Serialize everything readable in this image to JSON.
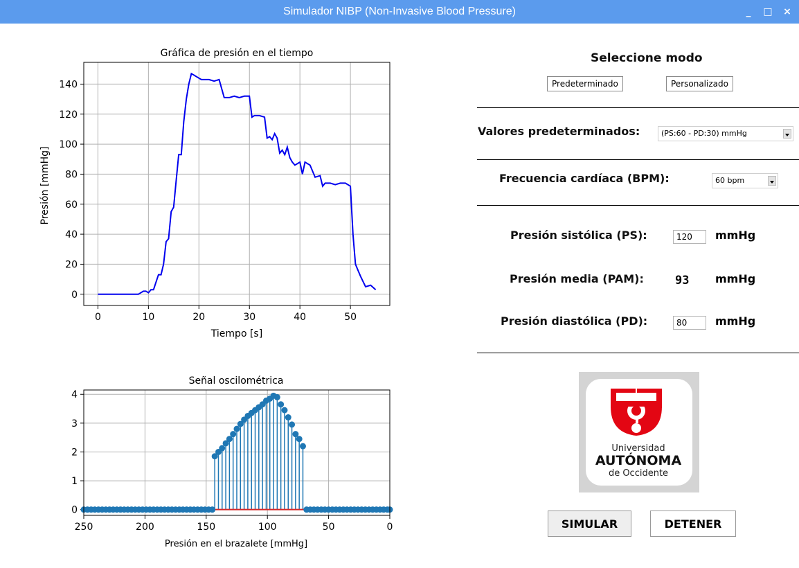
{
  "window": {
    "title": "Simulador NIBP (Non-Invasive Blood Pressure)",
    "controls": [
      "_",
      "□",
      "×"
    ]
  },
  "chart_data": [
    {
      "type": "line",
      "title": "Gráfica de presión en el tiempo",
      "xlabel": "Tiempo [s]",
      "ylabel": "Presión [mmHg]",
      "xlim": [
        -2.8,
        57.8
      ],
      "ylim": [
        -7.5,
        154.5
      ],
      "xticks": [
        0,
        10,
        20,
        30,
        40,
        50
      ],
      "yticks": [
        0,
        20,
        40,
        60,
        80,
        100,
        120,
        140
      ],
      "grid": true,
      "series": [
        {
          "color": "#0000ee",
          "x": [
            0,
            8,
            9,
            9.5,
            10,
            10.5,
            11,
            11.5,
            12,
            12.5,
            13,
            13.5,
            14,
            14.5,
            15,
            15.5,
            16,
            16.5,
            17,
            17.5,
            18,
            18.5,
            19,
            20,
            20.5,
            21,
            22,
            23,
            24,
            25,
            25.5,
            26,
            27,
            28,
            29,
            30,
            30.5,
            31,
            32,
            33,
            33.5,
            34,
            34.5,
            35,
            35.5,
            36,
            36.5,
            37,
            37.5,
            38,
            38.5,
            39,
            40,
            40.5,
            41,
            42,
            43,
            44,
            44.5,
            45,
            46,
            47,
            48,
            49,
            50,
            50.5,
            51,
            51.5,
            52,
            53,
            54,
            55
          ],
          "y": [
            0,
            0,
            2,
            2,
            1,
            3,
            3,
            8,
            13,
            13,
            20,
            35,
            37,
            55,
            58,
            76,
            93,
            93,
            115,
            130,
            140,
            147,
            146,
            144,
            143,
            143,
            143,
            142,
            143,
            131,
            131,
            131,
            132,
            131,
            132,
            132,
            118,
            119,
            119,
            118,
            104,
            105,
            103,
            107,
            104,
            94,
            96,
            93,
            98,
            91,
            88,
            86,
            88,
            80,
            88,
            86,
            78,
            79,
            72,
            74,
            74,
            73,
            74,
            74,
            72,
            40,
            20,
            16,
            12,
            5,
            6,
            3
          ]
        }
      ]
    },
    {
      "type": "stem",
      "title": "Señal oscilométrica",
      "xlabel": "Presión en el brazalete [mmHg]",
      "ylabel": "",
      "xlim": [
        250,
        0
      ],
      "ylim": [
        -0.2,
        4.15
      ],
      "xticks": [
        250,
        200,
        150,
        100,
        50,
        0
      ],
      "yticks": [
        0,
        1,
        2,
        3,
        4
      ],
      "grid": true,
      "baseline_color": "#d62728",
      "marker_color": "#1f77b4",
      "x": [
        250,
        247,
        244,
        241,
        238,
        235,
        232,
        229,
        226,
        223,
        220,
        217,
        214,
        211,
        208,
        205,
        202,
        199,
        196,
        193,
        190,
        187,
        184,
        181,
        178,
        175,
        172,
        169,
        166,
        163,
        160,
        157,
        154,
        151,
        148,
        145,
        143,
        140,
        137,
        134,
        131,
        128,
        125,
        122,
        119,
        116,
        113,
        110,
        107,
        104,
        101,
        98,
        95,
        92,
        89,
        86,
        83,
        80,
        77,
        74,
        71,
        68,
        65,
        62,
        59,
        56,
        53,
        50,
        47,
        44,
        41,
        38,
        35,
        32,
        29,
        26,
        23,
        20,
        17,
        14,
        11,
        8,
        5,
        2,
        0
      ],
      "y": [
        0,
        0,
        0,
        0,
        0,
        0,
        0,
        0,
        0,
        0,
        0,
        0,
        0,
        0,
        0,
        0,
        0,
        0,
        0,
        0,
        0,
        0,
        0,
        0,
        0,
        0,
        0,
        0,
        0,
        0,
        0,
        0,
        0,
        0,
        0,
        0,
        1.85,
        2.0,
        2.13,
        2.3,
        2.45,
        2.62,
        2.8,
        2.97,
        3.12,
        3.25,
        3.35,
        3.45,
        3.55,
        3.65,
        3.78,
        3.85,
        3.95,
        3.9,
        3.65,
        3.45,
        3.2,
        2.95,
        2.62,
        2.45,
        2.2,
        0,
        0,
        0,
        0,
        0,
        0,
        0,
        0,
        0,
        0,
        0,
        0,
        0,
        0,
        0,
        0,
        0,
        0,
        0,
        0,
        0,
        0,
        0,
        0
      ]
    }
  ],
  "panel": {
    "mode_title": "Seleccione modo",
    "btn_pre": "Predeterminado",
    "btn_pers": "Personalizado",
    "preset_label": "Valores predeterminados:",
    "preset_value": "(PS:60 - PD:30) mmHg",
    "fc_label": "Frecuencia cardíaca (BPM):",
    "fc_value": "60 bpm",
    "ps_label": "Presión sistólica (PS):",
    "ps_value": "120",
    "pam_label": "Presión media (PAM):",
    "pam_value": "93",
    "pd_label": "Presión diastólica (PD):",
    "pd_value": "80",
    "unit": "mmHg",
    "btn_sim": "SIMULAR",
    "btn_det": "DETENER"
  },
  "logo": {
    "line1": "Universidad",
    "line2": "AUTÓNOMA",
    "line3": "de Occidente",
    "color": "#e30613"
  }
}
